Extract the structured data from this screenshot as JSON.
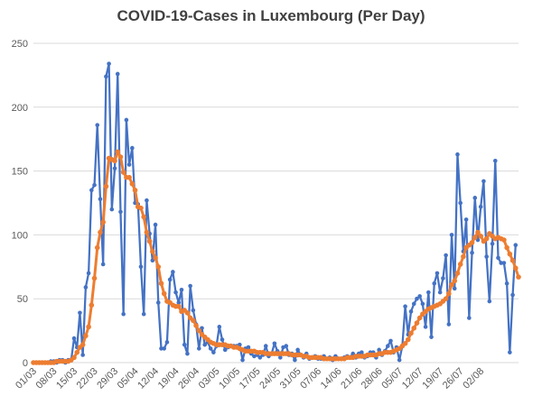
{
  "chart_data": {
    "type": "line",
    "title": "COVID-19-Cases in Luxembourg (Per Day)",
    "xlabel": "",
    "ylabel": "",
    "ylim": [
      0,
      250
    ],
    "yticks": [
      0,
      50,
      100,
      150,
      200,
      250
    ],
    "x_start_label": "01/03",
    "x_tick_labels": [
      "01/03",
      "08/03",
      "15/03",
      "22/03",
      "29/03",
      "05/04",
      "12/04",
      "19/04",
      "26/04",
      "03/05",
      "10/05",
      "17/05",
      "24/05",
      "31/05",
      "07/06",
      "14/06",
      "21/06",
      "28/06",
      "05/07",
      "12/07",
      "19/07",
      "26/07",
      "02/08"
    ],
    "grid": true,
    "legend": "none",
    "colors": {
      "series1": "#4472c4",
      "series2": "#ed7d31"
    },
    "series": [
      {
        "values": [
          0,
          0,
          0,
          0,
          0,
          0,
          1,
          1,
          0,
          2,
          2,
          0,
          2,
          2,
          19,
          12,
          39,
          6,
          59,
          70,
          135,
          139,
          186,
          128,
          77,
          224,
          234,
          120,
          152,
          226,
          118,
          38,
          190,
          155,
          168,
          125,
          124,
          75,
          38,
          127,
          101,
          80,
          108,
          47,
          11,
          11,
          16,
          65,
          71,
          55,
          47,
          57,
          14,
          7,
          60,
          41,
          30,
          11,
          27,
          14,
          16,
          11,
          8,
          13,
          28,
          18,
          10,
          12,
          13,
          13,
          13,
          14,
          2,
          11,
          12,
          7,
          5,
          6,
          4,
          6,
          13,
          5,
          7,
          15,
          9,
          4,
          12,
          13,
          6,
          7,
          2,
          10,
          6,
          4,
          7,
          3,
          4,
          5,
          3,
          3,
          5,
          3,
          4,
          2,
          5,
          3,
          3,
          4,
          5,
          4,
          7,
          4,
          7,
          8,
          4,
          5,
          8,
          8,
          4,
          10,
          6,
          9,
          13,
          17,
          8,
          12,
          2,
          13,
          44,
          22,
          40,
          46,
          50,
          52,
          46,
          28,
          55,
          20,
          62,
          70,
          55,
          66,
          84,
          30,
          100,
          58,
          163,
          125,
          87,
          112,
          35,
          86,
          129,
          96,
          122,
          142,
          83,
          48,
          93,
          158,
          82,
          78,
          78,
          62,
          8,
          53,
          92
        ]
      },
      {
        "values": [
          0,
          0,
          0,
          0,
          0,
          0,
          0,
          0,
          1,
          1,
          1,
          1,
          1,
          2,
          4,
          8,
          12,
          14,
          21,
          28,
          45,
          66,
          90,
          102,
          110,
          138,
          160,
          159,
          158,
          165,
          161,
          149,
          145,
          145,
          140,
          135,
          122,
          121,
          114,
          102,
          95,
          87,
          82,
          75,
          62,
          54,
          48,
          47,
          45,
          44,
          44,
          40,
          41,
          39,
          35,
          33,
          29,
          25,
          22,
          20,
          18,
          16,
          15,
          14,
          14,
          14,
          14,
          13,
          13,
          12,
          12,
          11,
          10,
          9,
          9,
          9,
          9,
          8,
          8,
          8,
          7,
          7,
          7,
          7,
          7,
          7,
          7,
          7,
          7,
          6,
          6,
          6,
          6,
          5,
          5,
          4,
          4,
          4,
          4,
          4,
          3,
          3,
          3,
          3,
          3,
          3,
          3,
          3,
          4,
          4,
          4,
          5,
          5,
          5,
          5,
          6,
          6,
          6,
          6,
          7,
          7,
          8,
          8,
          8,
          9,
          10,
          11,
          13,
          15,
          18,
          23,
          27,
          31,
          35,
          38,
          40,
          42,
          43,
          44,
          45,
          46,
          48,
          50,
          54,
          61,
          64,
          70,
          77,
          83,
          90,
          92,
          94,
          98,
          102,
          99,
          95,
          97,
          101,
          99,
          97,
          98,
          97,
          96,
          90,
          85,
          80,
          74,
          67
        ]
      }
    ]
  }
}
